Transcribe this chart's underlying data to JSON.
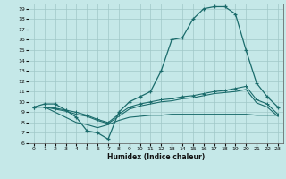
{
  "xlabel": "Humidex (Indice chaleur)",
  "background_color": "#c5e8e8",
  "grid_color": "#a0c8c8",
  "line_color": "#1a6b6b",
  "xlim": [
    -0.5,
    23.5
  ],
  "ylim": [
    6,
    19.5
  ],
  "xticks": [
    0,
    1,
    2,
    3,
    4,
    5,
    6,
    7,
    8,
    9,
    10,
    11,
    12,
    13,
    14,
    15,
    16,
    17,
    18,
    19,
    20,
    21,
    22,
    23
  ],
  "yticks": [
    6,
    7,
    8,
    9,
    10,
    11,
    12,
    13,
    14,
    15,
    16,
    17,
    18,
    19
  ],
  "line1_x": [
    0,
    1,
    2,
    3,
    4,
    5,
    6,
    7,
    8,
    9,
    10,
    11,
    12,
    13,
    14,
    15,
    16,
    17,
    18,
    19,
    20,
    21,
    22,
    23
  ],
  "line1_y": [
    9.5,
    9.8,
    9.8,
    9.2,
    8.5,
    7.2,
    7.0,
    6.4,
    9.0,
    10.0,
    10.5,
    11.0,
    13.0,
    16.0,
    16.2,
    18.0,
    19.0,
    19.2,
    19.2,
    18.5,
    15.0,
    11.8,
    10.5,
    9.5
  ],
  "line2_x": [
    0,
    1,
    2,
    3,
    4,
    5,
    6,
    7,
    8,
    9,
    10,
    11,
    12,
    13,
    14,
    15,
    16,
    17,
    18,
    19,
    20,
    21,
    22,
    23
  ],
  "line2_y": [
    9.5,
    9.5,
    9.4,
    9.2,
    9.0,
    8.7,
    8.3,
    8.0,
    8.8,
    9.5,
    9.8,
    10.0,
    10.2,
    10.3,
    10.5,
    10.6,
    10.8,
    11.0,
    11.1,
    11.3,
    11.5,
    10.2,
    9.8,
    8.8
  ],
  "line3_x": [
    0,
    1,
    2,
    3,
    4,
    5,
    6,
    7,
    8,
    9,
    10,
    11,
    12,
    13,
    14,
    15,
    16,
    17,
    18,
    19,
    20,
    21,
    22,
    23
  ],
  "line3_y": [
    9.5,
    9.5,
    9.3,
    9.1,
    8.8,
    8.6,
    8.2,
    7.9,
    8.6,
    9.3,
    9.6,
    9.8,
    10.0,
    10.1,
    10.3,
    10.4,
    10.6,
    10.8,
    10.9,
    11.0,
    11.2,
    9.9,
    9.5,
    8.6
  ],
  "line4_x": [
    0,
    1,
    2,
    3,
    4,
    5,
    6,
    7,
    8,
    9,
    10,
    11,
    12,
    13,
    14,
    15,
    16,
    17,
    18,
    19,
    20,
    21,
    22,
    23
  ],
  "line4_y": [
    9.5,
    9.5,
    9.0,
    8.5,
    8.0,
    7.8,
    7.5,
    7.8,
    8.2,
    8.5,
    8.6,
    8.7,
    8.7,
    8.8,
    8.8,
    8.8,
    8.8,
    8.8,
    8.8,
    8.8,
    8.8,
    8.7,
    8.7,
    8.7
  ]
}
